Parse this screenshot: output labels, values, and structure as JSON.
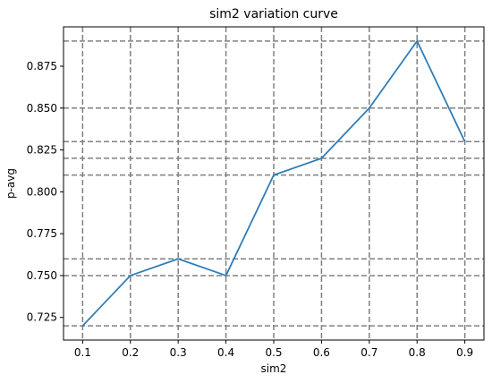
{
  "chart_data": {
    "type": "line",
    "title": "sim2 variation curve",
    "xlabel": "sim2",
    "ylabel": "p-avg",
    "x": [
      0.1,
      0.2,
      0.3,
      0.4,
      0.5,
      0.6,
      0.7,
      0.8,
      0.9
    ],
    "series": [
      {
        "values": [
          0.72,
          0.75,
          0.76,
          0.75,
          0.81,
          0.82,
          0.85,
          0.89,
          0.83
        ],
        "color": "#2e7eb8"
      }
    ],
    "xticks": [
      "0.1",
      "0.2",
      "0.3",
      "0.4",
      "0.5",
      "0.6",
      "0.7",
      "0.8",
      "0.9"
    ],
    "yticks": [
      "0.725",
      "0.750",
      "0.775",
      "0.800",
      "0.825",
      "0.850",
      "0.875"
    ],
    "xlim": [
      0.06,
      0.94
    ],
    "ylim": [
      0.7115,
      0.8985
    ],
    "grid": "dashed lines at each x value and at each data y value",
    "grid_color": "#808080",
    "legend": "none"
  }
}
